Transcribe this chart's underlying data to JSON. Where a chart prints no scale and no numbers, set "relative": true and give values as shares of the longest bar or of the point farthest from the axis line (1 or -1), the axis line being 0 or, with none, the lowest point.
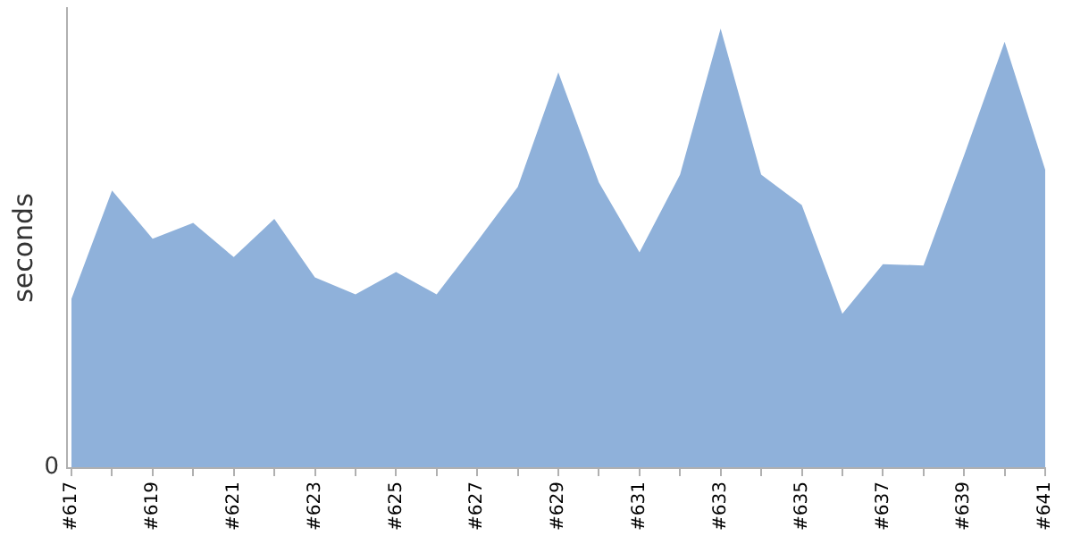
{
  "chart_data": {
    "type": "area",
    "ylabel": "seconds",
    "relative": true,
    "annotations": [
      "0"
    ],
    "categories": [
      "#617",
      null,
      "#619",
      null,
      "#621",
      null,
      "#623",
      null,
      "#625",
      null,
      "#627",
      null,
      "#629",
      null,
      "#631",
      null,
      "#633",
      null,
      "#635",
      null,
      "#637",
      null,
      "#639",
      null,
      "#641"
    ],
    "series": [
      {
        "color": "#8fb1da",
        "values": [
          0.384,
          0.631,
          0.521,
          0.557,
          0.479,
          0.566,
          0.433,
          0.394,
          0.445,
          0.394,
          0.515,
          0.639,
          0.9,
          0.649,
          0.49,
          0.667,
          1,
          0.667,
          0.598,
          0.35,
          0.463,
          0.46,
          0.711,
          0.97,
          0.678
        ]
      }
    ],
    "grid": false,
    "legend": false,
    "marker": "none"
  }
}
